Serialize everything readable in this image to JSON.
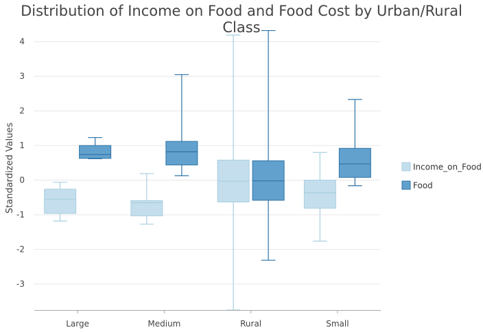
{
  "chart_data": {
    "type": "boxplot",
    "title": "Distribution of Income on Food and Food Cost by Urban/Rural Class",
    "ylabel": "Standardized Values",
    "xlabel": "",
    "categories": [
      "Large",
      "Medium",
      "Rural",
      "Small"
    ],
    "ylim": [
      -3.75,
      4.45
    ],
    "yticks": [
      -3,
      -2,
      -1,
      0,
      1,
      2,
      3,
      4
    ],
    "grid": true,
    "legend_position": "right",
    "series": [
      {
        "name": "Income_on_Food",
        "fill": "#c4deed",
        "stroke": "#a9cfe0",
        "boxes": [
          {
            "whisker_low": -1.18,
            "q1": -0.96,
            "median": -0.55,
            "q3": -0.26,
            "whisker_high": -0.06
          },
          {
            "whisker_low": -1.27,
            "q1": -1.03,
            "median": -0.65,
            "q3": -0.59,
            "whisker_high": 0.19
          },
          {
            "whisker_low": -3.75,
            "q1": -0.63,
            "median": -0.03,
            "q3": 0.58,
            "whisker_high": 4.19
          },
          {
            "whisker_low": -1.76,
            "q1": -0.81,
            "median": -0.36,
            "q3": 0.0,
            "whisker_high": 0.8
          }
        ]
      },
      {
        "name": "Food",
        "fill": "#62a1cd",
        "stroke": "#2f73a6",
        "boxes": [
          {
            "whisker_low": 0.62,
            "q1": 0.63,
            "median": 0.74,
            "q3": 1.0,
            "whisker_high": 1.23
          },
          {
            "whisker_low": 0.13,
            "q1": 0.44,
            "median": 0.82,
            "q3": 1.12,
            "whisker_high": 3.05
          },
          {
            "whisker_low": -2.31,
            "q1": -0.58,
            "median": -0.02,
            "q3": 0.56,
            "whisker_high": 4.32
          },
          {
            "whisker_low": -0.16,
            "q1": 0.08,
            "median": 0.47,
            "q3": 0.92,
            "whisker_high": 2.33
          }
        ]
      }
    ]
  }
}
